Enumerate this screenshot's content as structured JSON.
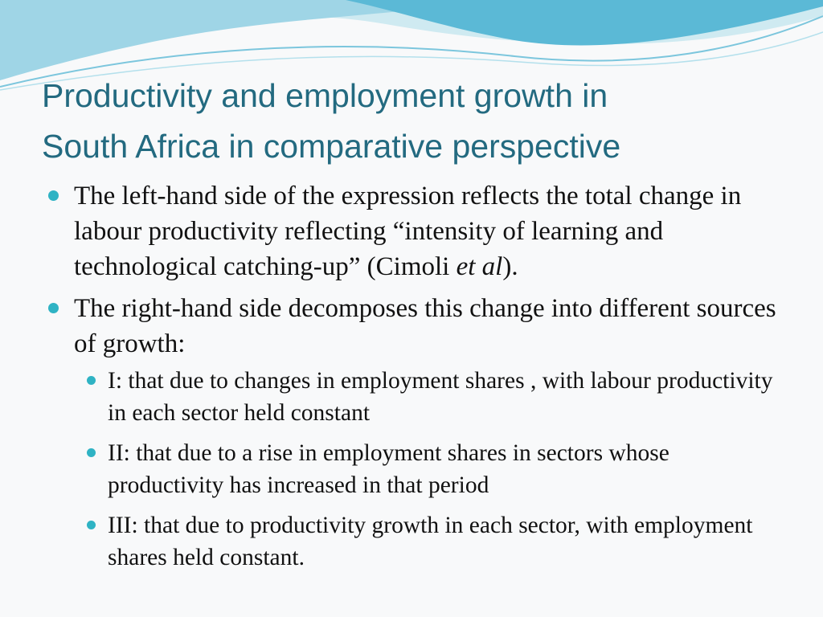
{
  "title": [
    "Productivity and employment growth in",
    "South Africa in comparative perspective"
  ],
  "bullets": [
    {
      "parts": [
        "The left-hand side of the expression reflects the total change in labour productivity reflecting “intensity of learning and technological catching-up” (Cimoli ",
        "et al",
        ")."
      ]
    },
    {
      "parts": [
        "The right-hand side decomposes this change into different sources of growth:"
      ],
      "sub": [
        "I: that due to changes in employment shares , with labour productivity in each sector held constant",
        "II: that due to a rise in employment shares in sectors whose productivity has increased in that period",
        "III: that due to productivity growth in each sector, with employment shares held constant."
      ]
    }
  ]
}
